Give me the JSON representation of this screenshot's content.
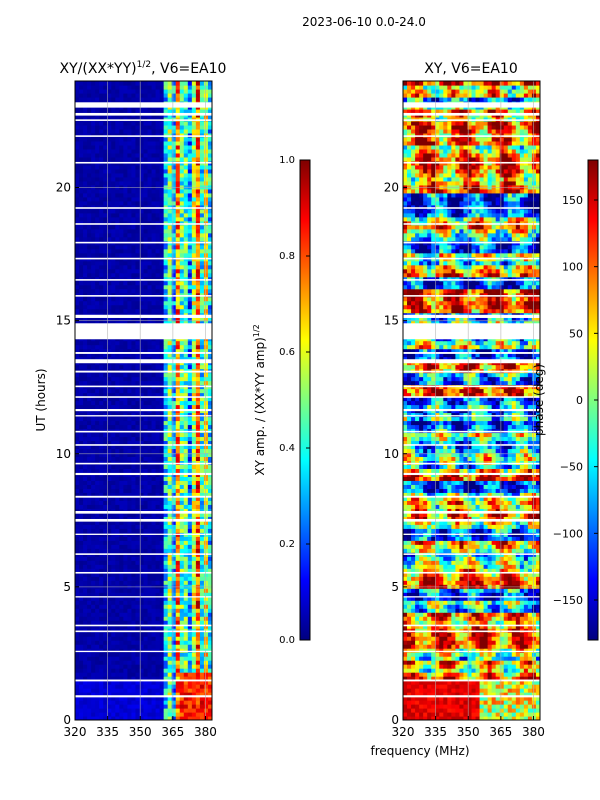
{
  "suptitle": "2023-06-10 0.0-24.0",
  "xlabel_shared": "frequency (MHz)",
  "colors": {
    "jet": [
      "#00007f",
      "#0000ff",
      "#007fff",
      "#00ffff",
      "#7fff7f",
      "#ffff00",
      "#ff7f00",
      "#ff0000",
      "#7f0000"
    ],
    "gap": "#ffffff",
    "grid": "#b0b0b0"
  },
  "chart_data": [
    {
      "type": "heatmap",
      "title": "XY/(XX*YY)",
      "title_sup": "1/2",
      "title_suffix": ", V6=EA10",
      "xlabel": "",
      "ylabel": "UT (hours)",
      "xlim": [
        320,
        383
      ],
      "ylim": [
        0,
        24
      ],
      "xticks": [
        "320",
        "335",
        "350",
        "365",
        "380"
      ],
      "xtick_values": [
        320,
        335,
        350,
        365,
        380
      ],
      "yticks": [
        "0",
        "5",
        "10",
        "15",
        "20"
      ],
      "ytick_values": [
        0,
        5,
        10,
        15,
        20
      ],
      "grid": true,
      "quantity": "amplitude",
      "pattern": "low values (~0.0) for 320-360 MHz; 360-383 MHz mixed 0.2-0.9 with vertical striping",
      "colorbar": {
        "label": "XY amp. / (XX*YY amp)",
        "label_sup": "1/2",
        "range": [
          0.0,
          1.0
        ],
        "ticks": [
          "0.0",
          "0.2",
          "0.4",
          "0.6",
          "0.8",
          "1.0"
        ],
        "tick_values": [
          0.0,
          0.2,
          0.4,
          0.6,
          0.8,
          1.0
        ]
      }
    },
    {
      "type": "heatmap",
      "title": "XY, V6=EA10",
      "xlabel": "frequency (MHz)",
      "ylabel": "",
      "xlim": [
        320,
        383
      ],
      "ylim": [
        0,
        24
      ],
      "xticks": [
        "320",
        "335",
        "350",
        "365",
        "380"
      ],
      "xtick_values": [
        320,
        335,
        350,
        365,
        380
      ],
      "yticks": [
        "0",
        "5",
        "10",
        "15",
        "20"
      ],
      "ytick_values": [
        0,
        5,
        10,
        15,
        20
      ],
      "grid": true,
      "quantity": "phase",
      "pattern": "mixed phases spanning -180 to 180 deg with horizontal banding",
      "colorbar": {
        "label": "phase (deg)",
        "range": [
          -180,
          180
        ],
        "ticks": [
          "−150",
          "−100",
          "−50",
          "0",
          "50",
          "100",
          "150"
        ],
        "tick_values": [
          -150,
          -100,
          -50,
          0,
          50,
          100,
          150
        ]
      }
    }
  ],
  "flagged_gaps_ut_hours": [
    [
      0.85,
      0.93
    ],
    [
      1.45,
      1.52
    ],
    [
      2.55,
      2.6
    ],
    [
      3.3,
      3.36
    ],
    [
      3.52,
      3.58
    ],
    [
      4.6,
      4.65
    ],
    [
      5.5,
      5.56
    ],
    [
      6.2,
      6.26
    ],
    [
      6.95,
      7.0
    ],
    [
      7.45,
      7.55
    ],
    [
      7.75,
      7.85
    ],
    [
      8.35,
      8.42
    ],
    [
      9.2,
      9.28
    ],
    [
      9.6,
      9.66
    ],
    [
      10.3,
      10.36
    ],
    [
      10.8,
      10.86
    ],
    [
      11.4,
      11.45
    ],
    [
      11.6,
      11.68
    ],
    [
      12.1,
      12.16
    ],
    [
      12.5,
      12.56
    ],
    [
      13.05,
      13.12
    ],
    [
      13.4,
      13.55
    ],
    [
      13.75,
      13.82
    ],
    [
      14.3,
      14.9
    ],
    [
      15.1,
      15.22
    ],
    [
      15.9,
      15.96
    ],
    [
      16.5,
      16.56
    ],
    [
      17.3,
      17.36
    ],
    [
      17.9,
      17.96
    ],
    [
      18.6,
      18.66
    ],
    [
      19.2,
      19.26
    ],
    [
      20.9,
      20.96
    ],
    [
      21.9,
      21.96
    ],
    [
      22.5,
      22.56
    ],
    [
      22.7,
      22.8
    ],
    [
      23.0,
      23.2
    ]
  ]
}
